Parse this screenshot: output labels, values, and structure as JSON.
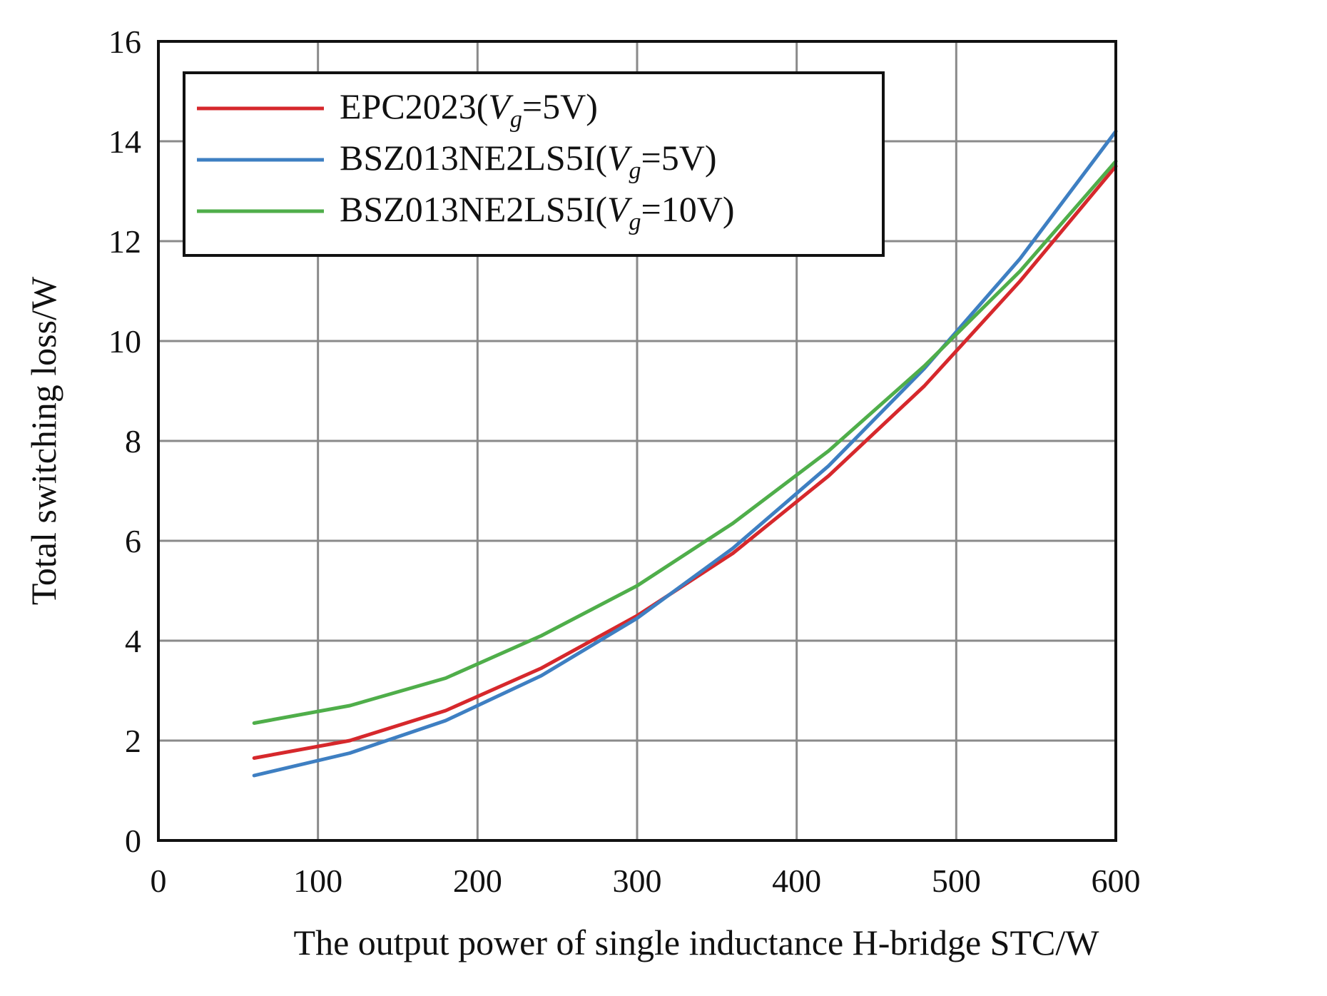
{
  "chart_data": {
    "type": "line",
    "title": "",
    "xlabel": "The output power of single inductance H-bridge STC/W",
    "ylabel": "Total switching loss/W",
    "xlim": [
      0,
      600
    ],
    "ylim": [
      0,
      16
    ],
    "xticks": [
      "0",
      "100",
      "200",
      "300",
      "400",
      "500",
      "600"
    ],
    "yticks": [
      "0",
      "2",
      "4",
      "6",
      "8",
      "10",
      "12",
      "14",
      "16"
    ],
    "grid": true,
    "legend_position": "top-left",
    "series": [
      {
        "name": "EPC2023(Vg=5V)",
        "legend": {
          "prefix": "EPC2023(",
          "var": "V",
          "sub": "g",
          "suffix": "=5V)"
        },
        "color": "#d6282c",
        "x": [
          60,
          120,
          180,
          240,
          300,
          360,
          420,
          480,
          540,
          600
        ],
        "y": [
          1.65,
          2.0,
          2.6,
          3.45,
          4.5,
          5.75,
          7.3,
          9.1,
          11.2,
          13.5
        ]
      },
      {
        "name": "BSZ013NE2LS5I(Vg=5V)",
        "legend": {
          "prefix": "BSZ013NE2LS5I(",
          "var": "V",
          "sub": "g",
          "suffix": "=5V)"
        },
        "color": "#3e7fc2",
        "x": [
          60,
          120,
          180,
          240,
          300,
          360,
          420,
          480,
          540,
          600
        ],
        "y": [
          1.3,
          1.75,
          2.4,
          3.3,
          4.45,
          5.85,
          7.5,
          9.45,
          11.65,
          14.2
        ]
      },
      {
        "name": "BSZ013NE2LS5I(Vg=10V)",
        "legend": {
          "prefix": "BSZ013NE2LS5I(",
          "var": "V",
          "sub": "g",
          "suffix": "=10V)"
        },
        "color": "#4fae4a",
        "x": [
          60,
          120,
          180,
          240,
          300,
          360,
          420,
          480,
          540,
          600
        ],
        "y": [
          2.35,
          2.7,
          3.25,
          4.1,
          5.1,
          6.35,
          7.8,
          9.5,
          11.4,
          13.6
        ]
      }
    ]
  }
}
